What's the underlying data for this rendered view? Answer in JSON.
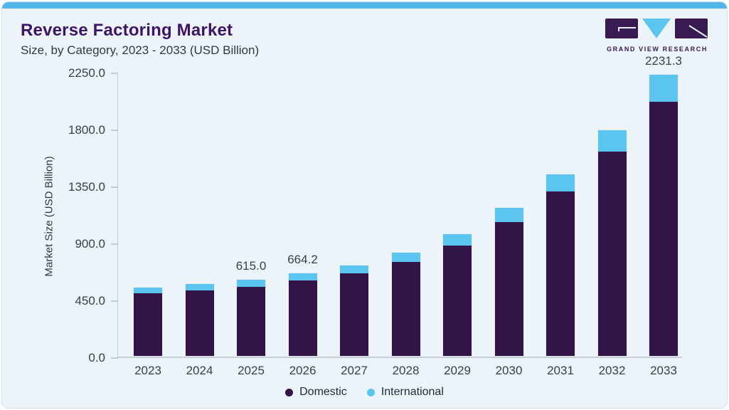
{
  "header": {
    "title": "Reverse Factoring Market",
    "subtitle": "Size, by Category, 2023 - 2033 (USD Billion)"
  },
  "logo": {
    "name": "grand-view-research",
    "text": "GRAND VIEW RESEARCH",
    "purple": "#3a1a52",
    "blue": "#5bc6f0"
  },
  "chart_data": {
    "type": "bar",
    "stacked": true,
    "title": "Reverse Factoring Market Size, by Category, 2023 - 2033 (USD Billion)",
    "ylabel": "Market Size (USD Billion)",
    "categories": [
      "2023",
      "2024",
      "2025",
      "2026",
      "2027",
      "2028",
      "2029",
      "2030",
      "2031",
      "2032",
      "2033"
    ],
    "series": [
      {
        "name": "Domestic",
        "color": "#321447",
        "values": [
          505,
          526,
          558,
          605,
          661,
          751,
          881,
          1067,
          1312,
          1625,
          2021.3
        ]
      },
      {
        "name": "International",
        "color": "#5ac6f0",
        "values": [
          48,
          55,
          57,
          59.2,
          63,
          78,
          94,
          114,
          135,
          169,
          210
        ]
      }
    ],
    "totals": [
      553,
      581,
      615.0,
      664.2,
      724,
      829,
      975,
      1181,
      1447,
      1794,
      2231.3
    ],
    "total_labels": [
      "",
      "",
      "615.0",
      "664.2",
      "",
      "",
      "",
      "",
      "",
      "",
      "2231.3"
    ],
    "ylim": [
      0,
      2250
    ],
    "y_tick_labels": [
      "2250.0",
      "1800.0",
      "1350.0",
      "900.0",
      "450.0",
      "0.0"
    ],
    "grid": false,
    "legend_position": "bottom"
  },
  "colors": {
    "card_background": "#edf4f9",
    "top_strip": "#52b7e8",
    "title_text": "#3c1566",
    "axis_text": "#39404a",
    "axis_line": "#c5ccd4"
  }
}
